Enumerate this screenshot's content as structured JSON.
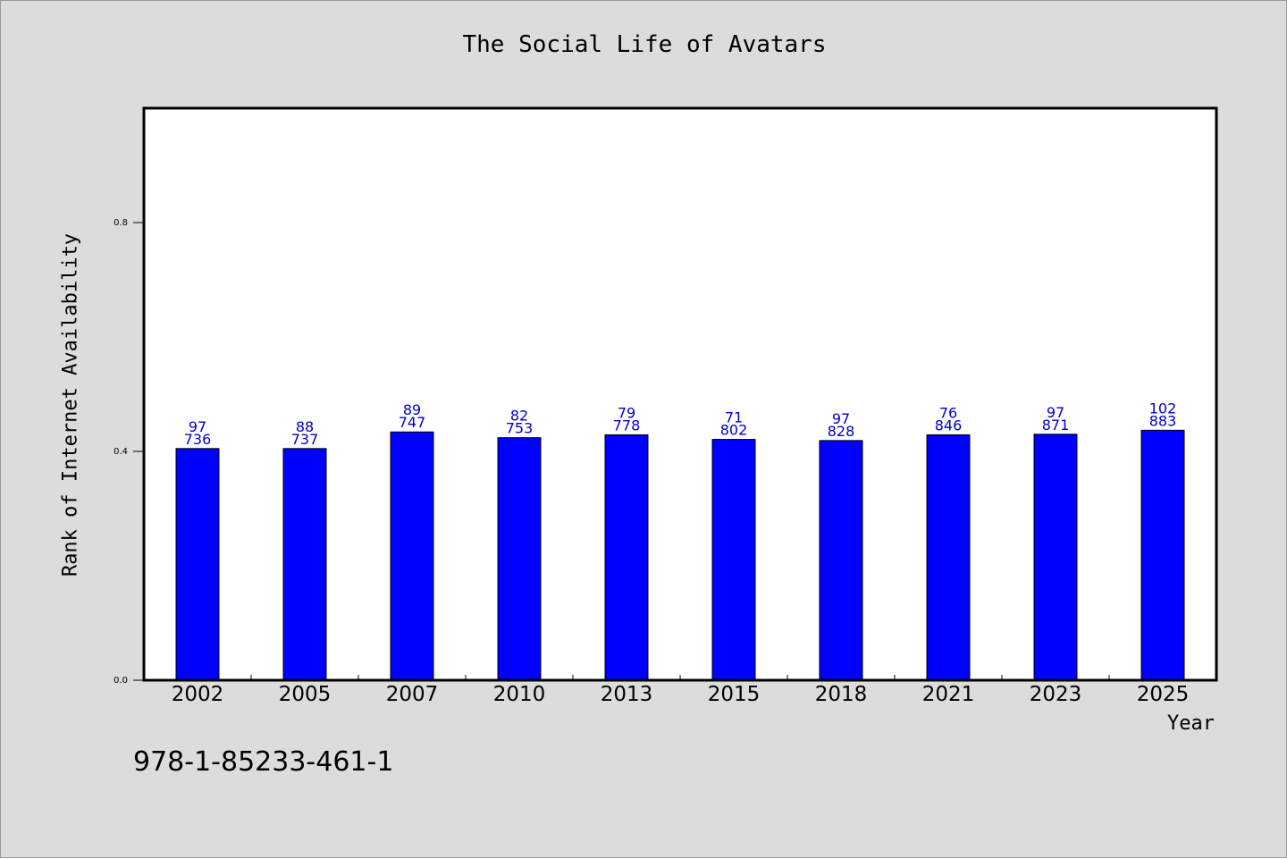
{
  "chart_data": {
    "type": "bar",
    "title": "The Social Life of Avatars",
    "xlabel": "Year",
    "ylabel": "Rank of Internet Availability",
    "categories": [
      "2002",
      "2005",
      "2007",
      "2010",
      "2013",
      "2015",
      "2018",
      "2021",
      "2023",
      "2025"
    ],
    "values": [
      0.405,
      0.405,
      0.434,
      0.424,
      0.429,
      0.421,
      0.419,
      0.429,
      0.43,
      0.437
    ],
    "data_labels_top": [
      "97",
      "88",
      "89",
      "82",
      "79",
      "71",
      "97",
      "76",
      "97",
      "102"
    ],
    "data_labels_bottom": [
      "736",
      "737",
      "747",
      "753",
      "778",
      "802",
      "828",
      "846",
      "871",
      "883"
    ],
    "ylim": [
      0,
      1
    ],
    "yticks": [
      0.0,
      0.4,
      0.8
    ],
    "ytick_labels": [
      "0.0",
      "0.4",
      "0.8"
    ],
    "grid": false,
    "bar_color": "#0000ff",
    "label_color": "#0000cc",
    "background_color": "#dcdcdc",
    "plot_background": "#ffffff"
  },
  "footer": {
    "code": "978-1-85233-461-1"
  }
}
